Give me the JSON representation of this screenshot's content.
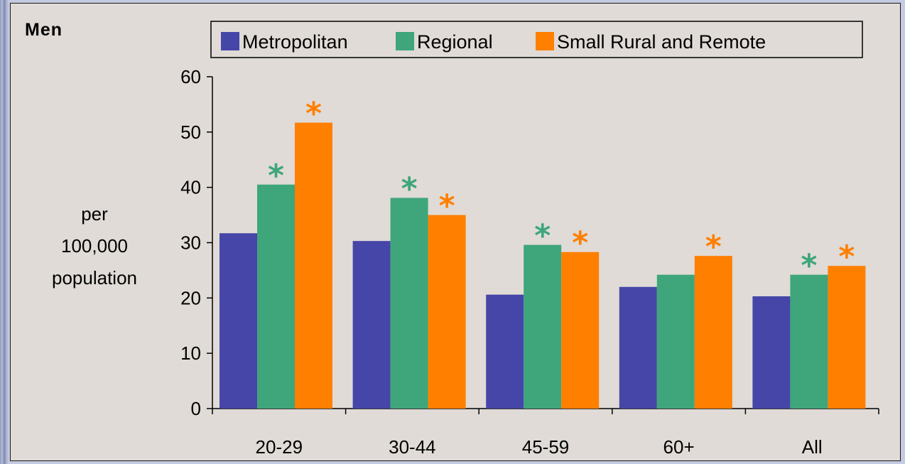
{
  "chart_data": {
    "type": "bar",
    "title": "Men",
    "ylabel_lines": [
      "per",
      "100,000",
      "population"
    ],
    "categories": [
      "20-29",
      "30-44",
      "45-59",
      "60+",
      "All"
    ],
    "ylim": [
      0,
      60
    ],
    "yticks": [
      0,
      10,
      20,
      30,
      40,
      50,
      60
    ],
    "grid": false,
    "legend_position": "top",
    "significance_marker": "*",
    "series": [
      {
        "name": "Metropolitan",
        "color": "#4646a8",
        "values": [
          31.7,
          30.3,
          20.6,
          22.0,
          20.3
        ],
        "significant": [
          false,
          false,
          false,
          false,
          false
        ]
      },
      {
        "name": "Regional",
        "color": "#3ea67a",
        "values": [
          40.5,
          38.1,
          29.6,
          24.2,
          24.2
        ],
        "significant": [
          true,
          true,
          true,
          false,
          true
        ]
      },
      {
        "name": "Small Rural and Remote",
        "color": "#ff7f00",
        "values": [
          51.7,
          35.0,
          28.3,
          27.6,
          25.8
        ],
        "significant": [
          true,
          true,
          true,
          true,
          true
        ]
      }
    ]
  }
}
